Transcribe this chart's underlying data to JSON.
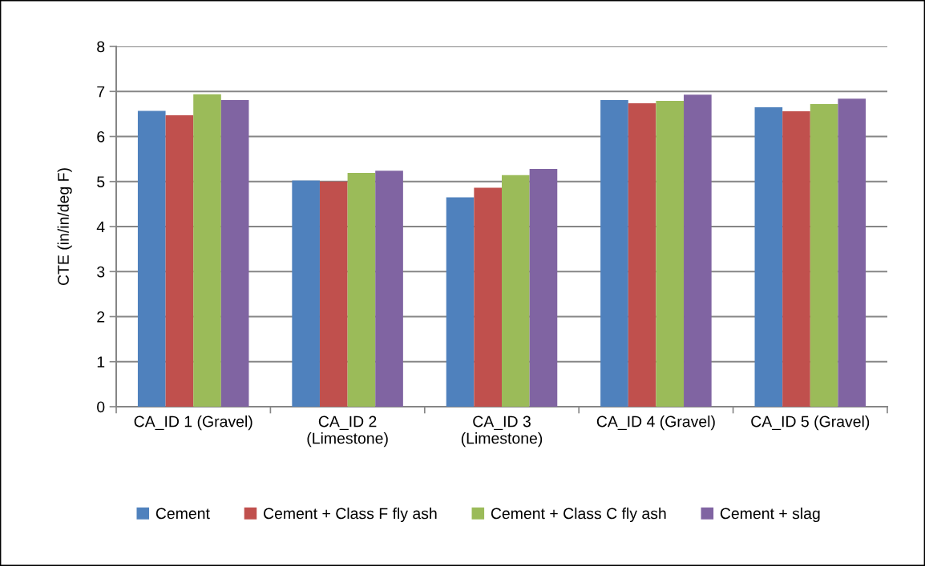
{
  "chart_data": {
    "type": "bar",
    "categories": [
      "CA_ID 1 (Gravel)",
      "CA_ID 2\n(Limestone)",
      "CA_ID 3\n(Limestone)",
      "CA_ID 4 (Gravel)",
      "CA_ID 5 (Gravel)"
    ],
    "series": [
      {
        "name": "Cement",
        "color": "#4f81bd",
        "values": [
          6.57,
          5.02,
          4.65,
          6.81,
          6.65
        ]
      },
      {
        "name": "Cement + Class F fly ash",
        "color": "#c0504d",
        "values": [
          6.47,
          5.0,
          4.86,
          6.74,
          6.56
        ]
      },
      {
        "name": "Cement + Class C fly ash",
        "color": "#9bbb59",
        "values": [
          6.94,
          5.19,
          5.14,
          6.79,
          6.72
        ]
      },
      {
        "name": "Cement + slag",
        "color": "#8064a2",
        "values": [
          6.81,
          5.24,
          5.28,
          6.93,
          6.84
        ]
      }
    ],
    "ylabel": "CTE (in/in/deg F)",
    "ylim": [
      0,
      8
    ],
    "yticks": [
      0,
      1,
      2,
      3,
      4,
      5,
      6,
      7,
      8
    ],
    "grid": "y",
    "legend": "bottom"
  }
}
